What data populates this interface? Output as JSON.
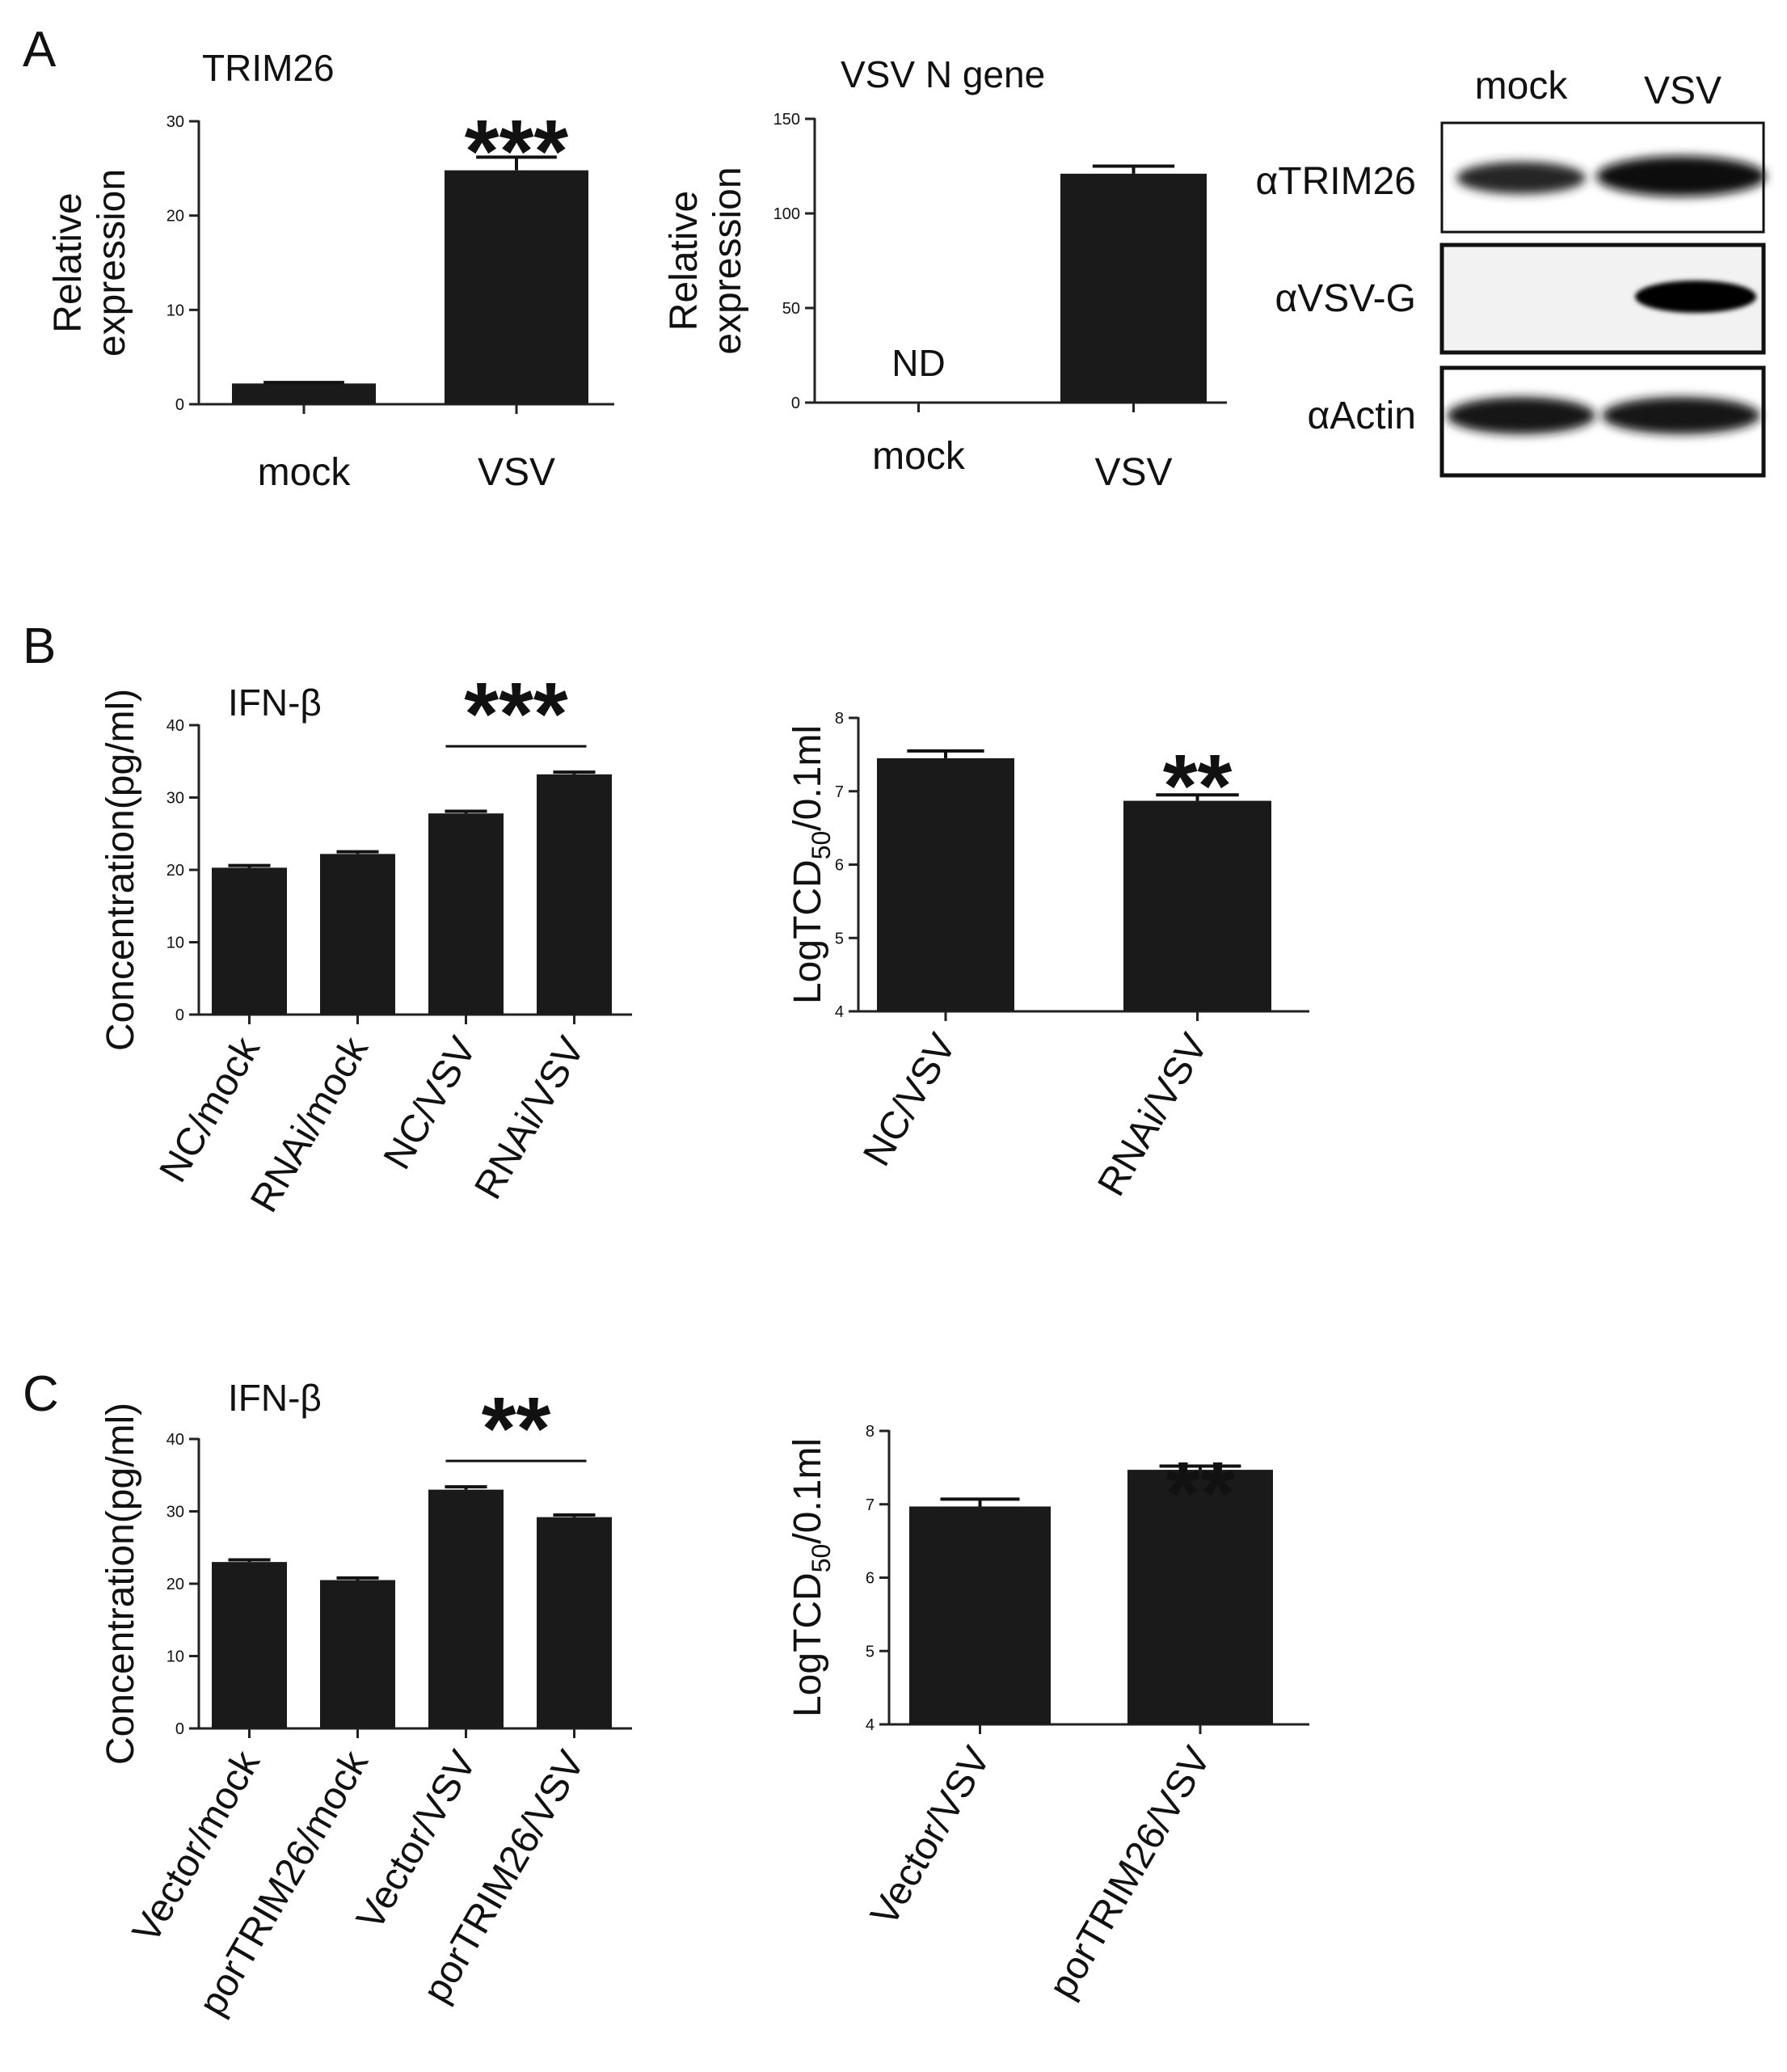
{
  "panel_labels": [
    "A",
    "B",
    "C"
  ],
  "chart_data": [
    {
      "id": "a1",
      "panel": "A",
      "type": "bar",
      "title": "TRIM26",
      "ylabel": "Relative\nexpression",
      "categories": [
        "mock",
        "VSV"
      ],
      "values": [
        2.2,
        24.8
      ],
      "errors": [
        0.1,
        1.4
      ],
      "ylim": [
        0,
        30
      ],
      "yticks": [
        0,
        10,
        20,
        30
      ],
      "significance": [
        {
          "label": "***",
          "bar": 1
        }
      ]
    },
    {
      "id": "a2",
      "panel": "A",
      "type": "bar",
      "title": "VSV N gene",
      "ylabel": "Relative\nexpression",
      "categories": [
        "mock",
        "VSV"
      ],
      "values": [
        0,
        121
      ],
      "errors": [
        0,
        4
      ],
      "ylim": [
        0,
        150
      ],
      "yticks": [
        0,
        50,
        100,
        150
      ],
      "annotations": [
        {
          "text": "ND",
          "bar": 0
        }
      ]
    },
    {
      "id": "b1",
      "panel": "B",
      "type": "bar",
      "title": "IFN-β",
      "ylabel": "Concentration(pg/ml)",
      "categories": [
        "NC/mock",
        "RNAi/mock",
        "NC/VSV",
        "RNAi/VSV"
      ],
      "values": [
        20.3,
        22.2,
        27.8,
        33.2
      ],
      "errors": [
        0.3,
        0.3,
        0.3,
        0.3
      ],
      "ylim": [
        0,
        40
      ],
      "yticks": [
        0,
        10,
        20,
        30,
        40
      ],
      "significance": [
        {
          "label": "***",
          "from": 2,
          "to": 3
        }
      ]
    },
    {
      "id": "b2",
      "panel": "B",
      "type": "bar",
      "ylabel": "LogTCD50/0.1ml",
      "categories": [
        "NC/VSV",
        "RNAi/VSV"
      ],
      "values": [
        7.45,
        6.87
      ],
      "errors": [
        0.1,
        0.08
      ],
      "ylim": [
        4,
        8
      ],
      "yticks": [
        4,
        5,
        6,
        7,
        8
      ],
      "significance": [
        {
          "label": "**",
          "bar": 1
        }
      ]
    },
    {
      "id": "c1",
      "panel": "C",
      "type": "bar",
      "title": "IFN-β",
      "ylabel": "Concentration(pg/ml)",
      "categories": [
        "Vector/mock",
        "porTRIM26/mock",
        "Vector/VSV",
        "porTRIM26/VSV"
      ],
      "values": [
        23.0,
        20.5,
        33.0,
        29.2
      ],
      "errors": [
        0.3,
        0.3,
        0.4,
        0.3
      ],
      "ylim": [
        0,
        40
      ],
      "yticks": [
        0,
        10,
        20,
        30,
        40
      ],
      "significance": [
        {
          "label": "**",
          "from": 2,
          "to": 3
        }
      ]
    },
    {
      "id": "c2",
      "panel": "C",
      "type": "bar",
      "ylabel": "LogTCD50/0.1ml",
      "categories": [
        "Vector/VSV",
        "porTRIM26/VSV"
      ],
      "values": [
        6.97,
        7.47
      ],
      "errors": [
        0.1,
        0.05
      ],
      "ylim": [
        4,
        8
      ],
      "yticks": [
        4,
        5,
        6,
        7,
        8
      ],
      "significance": [
        {
          "label": "**",
          "bar": 1
        }
      ]
    }
  ],
  "western_blot": {
    "lanes": [
      "mock",
      "VSV"
    ],
    "rows": [
      {
        "label": "αTRIM26",
        "intensity": [
          0.75,
          1.0
        ]
      },
      {
        "label": "αVSV-G",
        "intensity": [
          0.0,
          1.0
        ]
      },
      {
        "label": "αActin",
        "intensity": [
          1.0,
          1.0
        ]
      }
    ]
  },
  "colors": {
    "bar": "#1a1a1a",
    "axis": "#222222",
    "background": "#ffffff"
  }
}
